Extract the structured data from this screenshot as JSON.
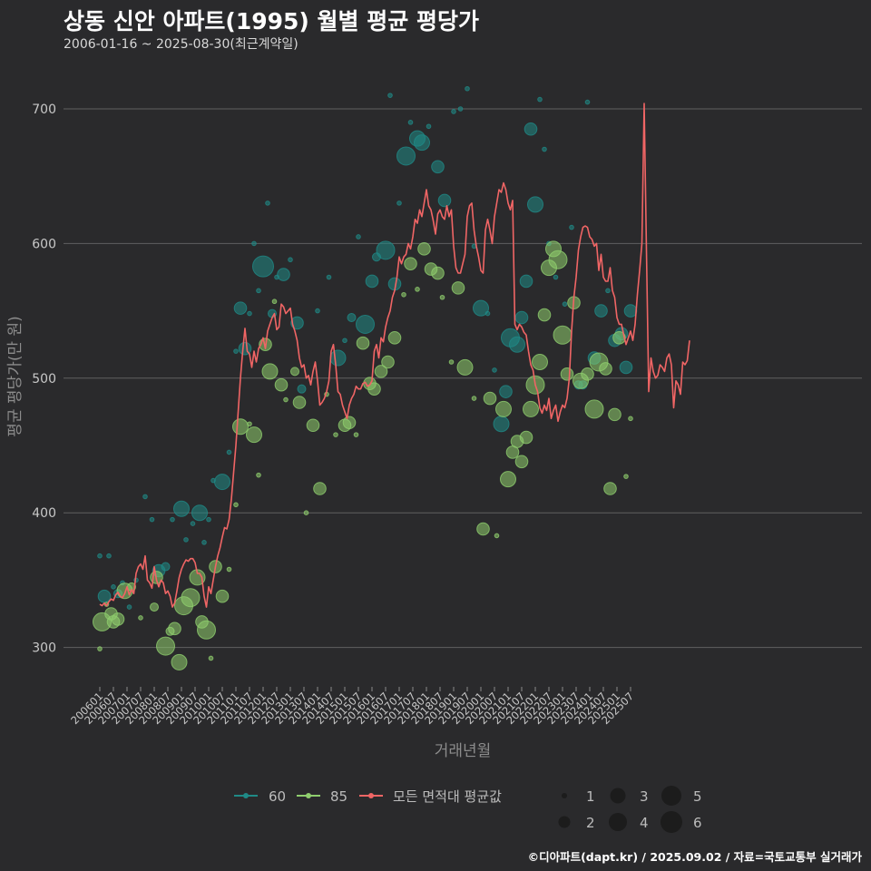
{
  "title": "상동 신안 아파트(1995) 월별 평균 평당가",
  "subtitle": "2006-01-16 ~ 2025-08-30(최근계약일)",
  "footer": "©디아파트(dapt.kr) / 2025.09.02 / 자료=국토교통부 실거래가",
  "colors": {
    "background": "#2a2a2c",
    "grid": "#606060",
    "series_60": "#1f8a87",
    "series_85": "#8fce6e",
    "avg_line": "#f06565",
    "bubble_key": "#1c1c1c"
  },
  "chart_data": {
    "type": "scatter",
    "xlabel": "거래년월",
    "ylabel": "평균 평당가(만 원)",
    "ylim": [
      265,
      730
    ],
    "yticks": [
      300,
      400,
      500,
      600,
      700
    ],
    "xticks": [
      "200601",
      "200607",
      "200701",
      "200707",
      "200801",
      "200807",
      "200901",
      "200907",
      "201001",
      "201007",
      "201101",
      "201107",
      "201201",
      "201207",
      "201301",
      "201307",
      "201401",
      "201407",
      "201501",
      "201507",
      "201601",
      "201607",
      "201701",
      "201707",
      "201801",
      "201807",
      "201901",
      "201907",
      "202001",
      "202007",
      "202101",
      "202107",
      "202201",
      "202207",
      "202301",
      "202307",
      "202401",
      "202407",
      "202501",
      "202507"
    ],
    "grid": true,
    "legend_position": "bottom",
    "size_legend": [
      1,
      2,
      3,
      4,
      5,
      6
    ],
    "series": [
      {
        "name": "60",
        "color": "#1f8a87",
        "points": [
          [
            "2006-01",
            368,
            1
          ],
          [
            "2006-03",
            338,
            3
          ],
          [
            "2006-05",
            368,
            1
          ],
          [
            "2006-07",
            345,
            1
          ],
          [
            "2006-09",
            340,
            2
          ],
          [
            "2006-11",
            348,
            1
          ],
          [
            "2007-02",
            330,
            1
          ],
          [
            "2007-05",
            350,
            1
          ],
          [
            "2007-09",
            412,
            1
          ],
          [
            "2007-12",
            395,
            1
          ],
          [
            "2008-03",
            357,
            3
          ],
          [
            "2008-06",
            360,
            2
          ],
          [
            "2008-09",
            395,
            1
          ],
          [
            "2009-01",
            403,
            4
          ],
          [
            "2009-03",
            380,
            1
          ],
          [
            "2009-06",
            392,
            1
          ],
          [
            "2009-09",
            400,
            4
          ],
          [
            "2009-11",
            378,
            1
          ],
          [
            "2010-01",
            395,
            1
          ],
          [
            "2010-03",
            424,
            1
          ],
          [
            "2010-07",
            423,
            4
          ],
          [
            "2010-10",
            445,
            1
          ],
          [
            "2011-01",
            520,
            1
          ],
          [
            "2011-03",
            552,
            3
          ],
          [
            "2011-05",
            522,
            3
          ],
          [
            "2011-07",
            548,
            1
          ],
          [
            "2011-09",
            600,
            1
          ],
          [
            "2011-11",
            565,
            1
          ],
          [
            "2012-01",
            583,
            6
          ],
          [
            "2012-03",
            630,
            1
          ],
          [
            "2012-05",
            548,
            2
          ],
          [
            "2012-07",
            575,
            1
          ],
          [
            "2012-10",
            577,
            3
          ],
          [
            "2013-01",
            588,
            1
          ],
          [
            "2013-04",
            541,
            3
          ],
          [
            "2013-06",
            492,
            2
          ],
          [
            "2014-01",
            550,
            1
          ],
          [
            "2014-06",
            575,
            1
          ],
          [
            "2014-10",
            515,
            4
          ],
          [
            "2015-01",
            528,
            1
          ],
          [
            "2015-04",
            545,
            2
          ],
          [
            "2015-07",
            605,
            1
          ],
          [
            "2015-10",
            540,
            5
          ],
          [
            "2016-01",
            572,
            3
          ],
          [
            "2016-03",
            590,
            2
          ],
          [
            "2016-07",
            595,
            5
          ],
          [
            "2016-09",
            710,
            1
          ],
          [
            "2016-11",
            570,
            3
          ],
          [
            "2017-01",
            630,
            1
          ],
          [
            "2017-04",
            665,
            5
          ],
          [
            "2017-06",
            690,
            1
          ],
          [
            "2017-09",
            678,
            4
          ],
          [
            "2017-11",
            675,
            4
          ],
          [
            "2018-02",
            687,
            1
          ],
          [
            "2018-06",
            657,
            3
          ],
          [
            "2018-09",
            632,
            3
          ],
          [
            "2019-01",
            698,
            1
          ],
          [
            "2019-04",
            700,
            1
          ],
          [
            "2019-07",
            715,
            1
          ],
          [
            "2019-10",
            598,
            1
          ],
          [
            "2020-01",
            552,
            4
          ],
          [
            "2020-04",
            548,
            1
          ],
          [
            "2020-07",
            506,
            1
          ],
          [
            "2020-10",
            466,
            4
          ],
          [
            "2020-12",
            490,
            3
          ],
          [
            "2021-02",
            530,
            5
          ],
          [
            "2021-05",
            525,
            4
          ],
          [
            "2021-07",
            545,
            3
          ],
          [
            "2021-09",
            572,
            3
          ],
          [
            "2021-11",
            685,
            3
          ],
          [
            "2022-01",
            629,
            4
          ],
          [
            "2022-03",
            707,
            1
          ],
          [
            "2022-05",
            670,
            1
          ],
          [
            "2022-07",
            600,
            1
          ],
          [
            "2022-10",
            575,
            1
          ],
          [
            "2023-02",
            555,
            1
          ],
          [
            "2023-05",
            612,
            1
          ],
          [
            "2023-08",
            495,
            2
          ],
          [
            "2023-10",
            495,
            2
          ],
          [
            "2023-12",
            705,
            1
          ],
          [
            "2024-03",
            515,
            3
          ],
          [
            "2024-06",
            550,
            3
          ],
          [
            "2024-09",
            565,
            1
          ],
          [
            "2024-12",
            528,
            3
          ],
          [
            "2025-03",
            533,
            3
          ],
          [
            "2025-05",
            508,
            3
          ],
          [
            "2025-07",
            550,
            3
          ]
        ]
      },
      {
        "name": "85",
        "color": "#8fce6e",
        "points": [
          [
            "2006-01",
            299,
            1
          ],
          [
            "2006-02",
            319,
            5
          ],
          [
            "2006-04",
            332,
            1
          ],
          [
            "2006-06",
            325,
            3
          ],
          [
            "2006-07",
            319,
            3
          ],
          [
            "2006-09",
            321,
            3
          ],
          [
            "2006-12",
            342,
            4
          ],
          [
            "2007-03",
            345,
            2
          ],
          [
            "2007-07",
            322,
            1
          ],
          [
            "2008-01",
            330,
            2
          ],
          [
            "2008-02",
            352,
            3
          ],
          [
            "2008-06",
            301,
            5
          ],
          [
            "2008-08",
            312,
            2
          ],
          [
            "2008-10",
            314,
            3
          ],
          [
            "2008-12",
            289,
            4
          ],
          [
            "2009-02",
            331,
            5
          ],
          [
            "2009-05",
            337,
            5
          ],
          [
            "2009-08",
            352,
            4
          ],
          [
            "2009-10",
            319,
            3
          ],
          [
            "2009-12",
            313,
            5
          ],
          [
            "2010-02",
            292,
            1
          ],
          [
            "2010-04",
            360,
            3
          ],
          [
            "2010-07",
            338,
            3
          ],
          [
            "2010-10",
            358,
            1
          ],
          [
            "2011-01",
            406,
            1
          ],
          [
            "2011-03",
            464,
            4
          ],
          [
            "2011-07",
            466,
            1
          ],
          [
            "2011-09",
            458,
            4
          ],
          [
            "2011-11",
            428,
            1
          ],
          [
            "2012-02",
            525,
            3
          ],
          [
            "2012-04",
            505,
            4
          ],
          [
            "2012-06",
            557,
            1
          ],
          [
            "2012-09",
            495,
            3
          ],
          [
            "2012-11",
            484,
            1
          ],
          [
            "2013-03",
            505,
            2
          ],
          [
            "2013-05",
            482,
            3
          ],
          [
            "2013-08",
            400,
            1
          ],
          [
            "2013-11",
            465,
            3
          ],
          [
            "2014-02",
            418,
            3
          ],
          [
            "2014-05",
            488,
            1
          ],
          [
            "2014-09",
            458,
            1
          ],
          [
            "2015-01",
            465,
            3
          ],
          [
            "2015-03",
            467,
            3
          ],
          [
            "2015-06",
            458,
            1
          ],
          [
            "2015-09",
            526,
            3
          ],
          [
            "2015-12",
            496,
            3
          ],
          [
            "2016-02",
            492,
            3
          ],
          [
            "2016-05",
            505,
            3
          ],
          [
            "2016-08",
            512,
            3
          ],
          [
            "2016-11",
            530,
            3
          ],
          [
            "2017-03",
            562,
            1
          ],
          [
            "2017-06",
            585,
            3
          ],
          [
            "2017-09",
            566,
            1
          ],
          [
            "2017-12",
            596,
            3
          ],
          [
            "2018-03",
            581,
            3
          ],
          [
            "2018-06",
            578,
            3
          ],
          [
            "2018-08",
            560,
            1
          ],
          [
            "2018-12",
            512,
            1
          ],
          [
            "2019-03",
            567,
            3
          ],
          [
            "2019-06",
            508,
            4
          ],
          [
            "2019-10",
            485,
            1
          ],
          [
            "2020-02",
            388,
            3
          ],
          [
            "2020-05",
            485,
            3
          ],
          [
            "2020-08",
            383,
            1
          ],
          [
            "2020-11",
            477,
            4
          ],
          [
            "2021-01",
            425,
            4
          ],
          [
            "2021-03",
            445,
            3
          ],
          [
            "2021-05",
            453,
            3
          ],
          [
            "2021-07",
            438,
            3
          ],
          [
            "2021-09",
            456,
            3
          ],
          [
            "2021-11",
            477,
            4
          ],
          [
            "2022-01",
            495,
            5
          ],
          [
            "2022-03",
            512,
            4
          ],
          [
            "2022-05",
            547,
            3
          ],
          [
            "2022-07",
            582,
            4
          ],
          [
            "2022-09",
            596,
            4
          ],
          [
            "2022-11",
            588,
            5
          ],
          [
            "2023-01",
            532,
            5
          ],
          [
            "2023-03",
            503,
            3
          ],
          [
            "2023-06",
            556,
            3
          ],
          [
            "2023-09",
            498,
            4
          ],
          [
            "2023-12",
            503,
            3
          ],
          [
            "2024-03",
            477,
            5
          ],
          [
            "2024-05",
            512,
            5
          ],
          [
            "2024-08",
            507,
            3
          ],
          [
            "2024-10",
            418,
            3
          ],
          [
            "2024-12",
            473,
            3
          ],
          [
            "2025-02",
            530,
            3
          ],
          [
            "2025-05",
            427,
            1
          ],
          [
            "2025-07",
            470,
            1
          ]
        ]
      }
    ],
    "average_line": {
      "name": "모든 면적대 평균값",
      "color": "#f06565",
      "values": [
        332,
        331,
        333,
        331,
        334,
        336,
        335,
        339,
        341,
        338,
        337,
        340,
        345,
        339,
        343,
        340,
        355,
        360,
        362,
        358,
        368,
        350,
        348,
        344,
        360,
        350,
        345,
        350,
        348,
        340,
        342,
        338,
        330,
        333,
        342,
        352,
        358,
        362,
        365,
        364,
        366,
        366,
        363,
        355,
        355,
        352,
        338,
        330,
        345,
        340,
        350,
        360,
        368,
        374,
        382,
        389,
        388,
        395,
        410,
        430,
        450,
        475,
        500,
        520,
        537,
        520,
        518,
        508,
        520,
        512,
        522,
        525,
        530,
        522,
        535,
        540,
        545,
        548,
        536,
        538,
        555,
        553,
        548,
        550,
        552,
        540,
        535,
        528,
        515,
        508,
        510,
        500,
        502,
        495,
        505,
        512,
        498,
        480,
        482,
        485,
        490,
        498,
        520,
        525,
        510,
        490,
        488,
        480,
        475,
        470,
        480,
        485,
        488,
        494,
        492,
        492,
        496,
        497,
        494,
        495,
        498,
        520,
        525,
        515,
        530,
        527,
        538,
        545,
        550,
        560,
        565,
        575,
        590,
        585,
        590,
        592,
        600,
        596,
        605,
        618,
        615,
        625,
        620,
        630,
        640,
        628,
        625,
        617,
        607,
        622,
        625,
        620,
        618,
        628,
        620,
        625,
        598,
        582,
        578,
        578,
        585,
        592,
        620,
        628,
        630,
        610,
        598,
        590,
        580,
        578,
        610,
        618,
        610,
        600,
        620,
        630,
        640,
        638,
        645,
        640,
        630,
        625,
        632,
        540,
        536,
        540,
        538,
        534,
        532,
        520,
        510,
        506,
        495,
        490,
        478,
        474,
        480,
        476,
        485,
        470,
        476,
        480,
        468,
        475,
        480,
        478,
        485,
        500,
        535,
        560,
        575,
        595,
        605,
        612,
        613,
        612,
        605,
        603,
        598,
        600,
        580,
        592,
        575,
        572,
        572,
        582,
        565,
        560,
        545,
        540,
        540,
        532,
        525,
        530,
        535,
        528,
        540,
        562,
        580,
        600,
        704,
        595,
        490,
        515,
        505,
        500,
        502,
        510,
        508,
        505,
        515,
        518,
        510,
        478,
        498,
        495,
        488,
        512,
        510,
        513,
        528
      ]
    }
  },
  "legend": {
    "items": [
      {
        "label": "60",
        "color": "#1f8a87"
      },
      {
        "label": "85",
        "color": "#8fce6e"
      },
      {
        "label": "모든 면적대 평균값",
        "color": "#f06565"
      }
    ],
    "sizes": [
      "1",
      "2",
      "3",
      "4",
      "5",
      "6"
    ]
  }
}
